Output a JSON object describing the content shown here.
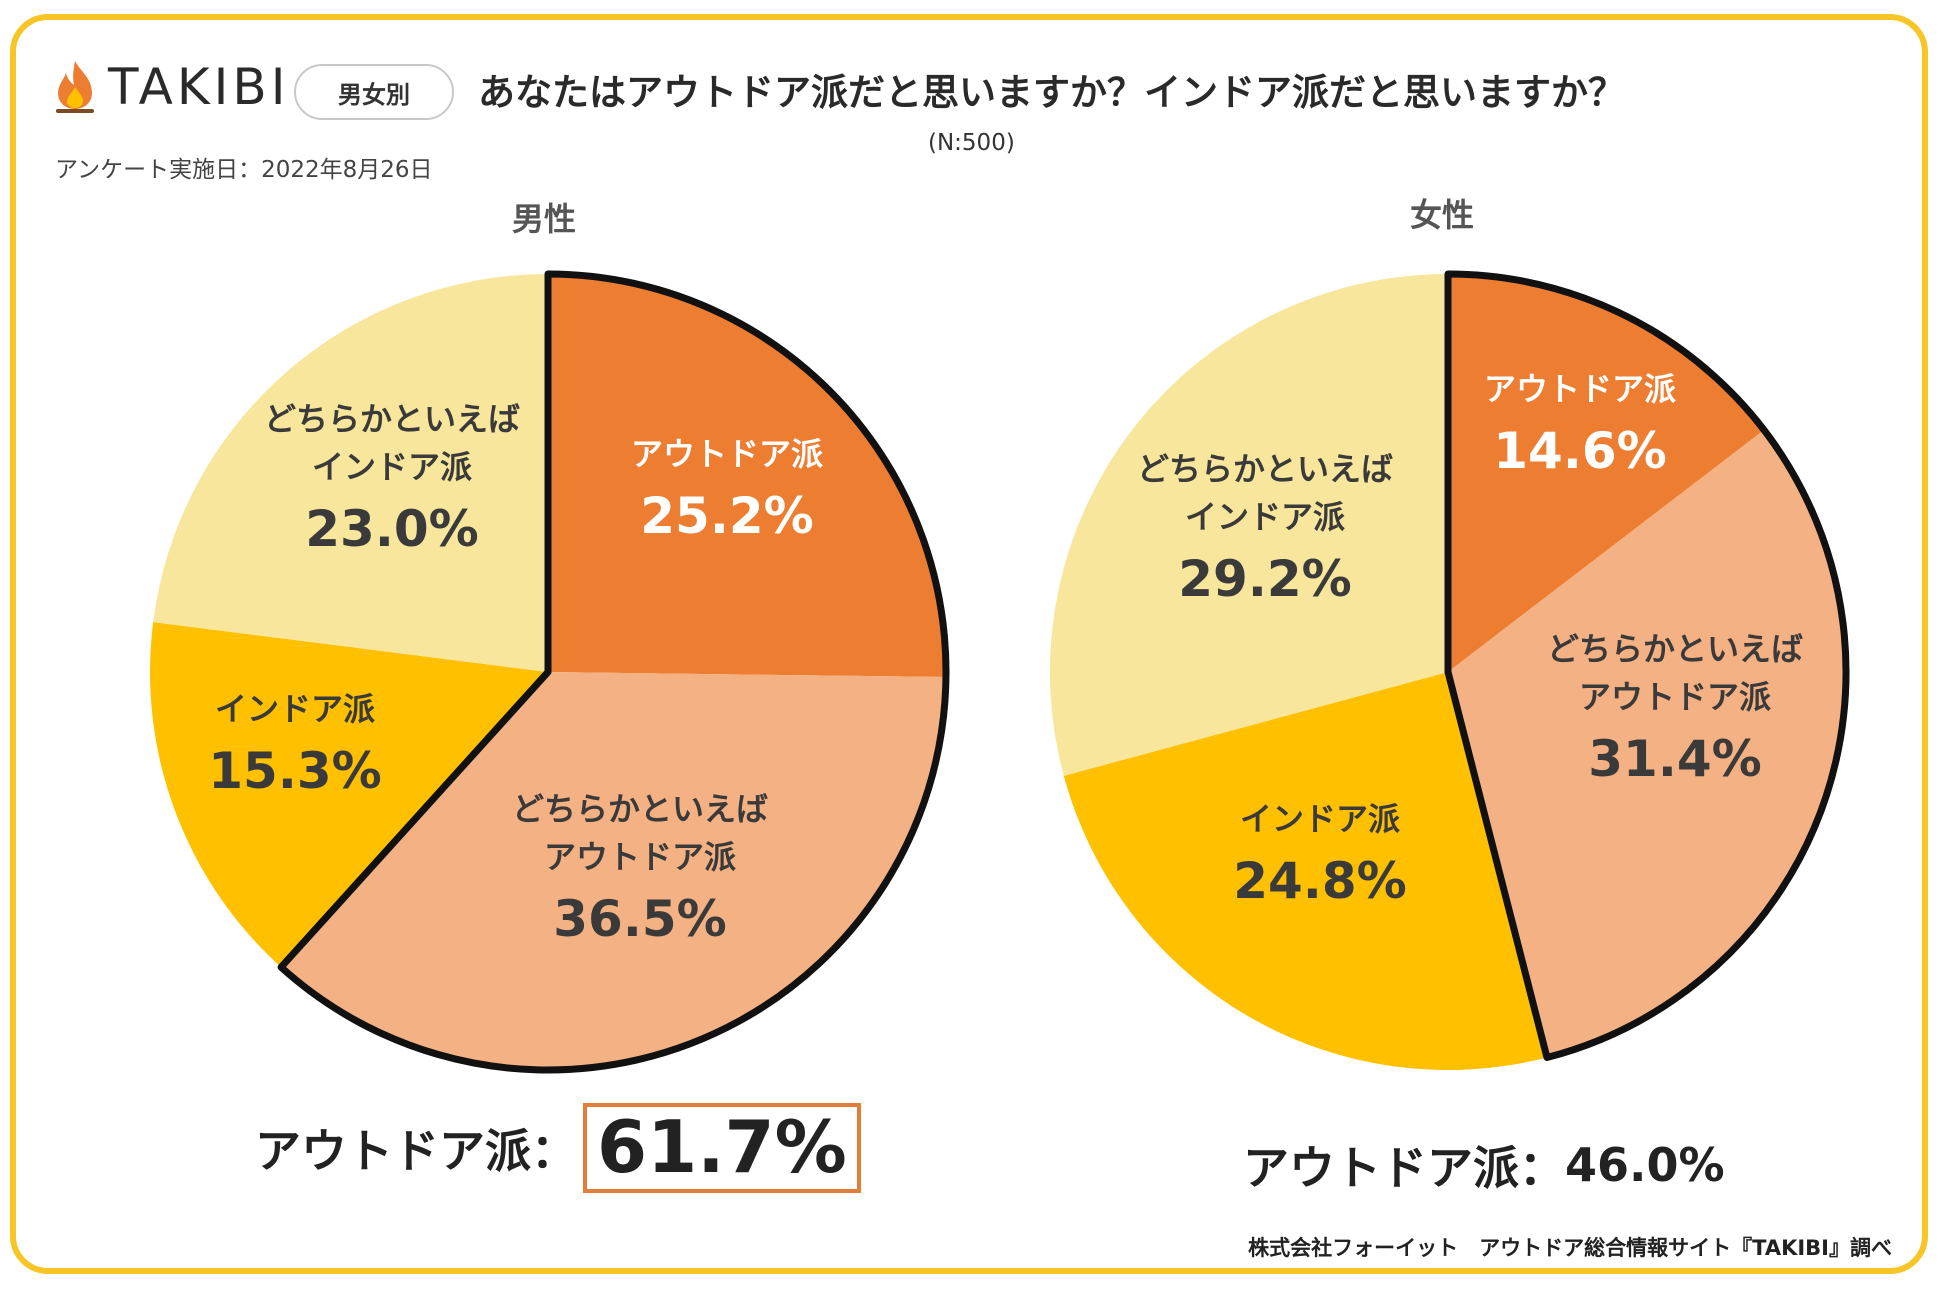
{
  "brand": {
    "name": "TAKIBI"
  },
  "badge": "男女別",
  "title": "あなたはアウトドア派だと思いますか？インドア派だと思いますか？",
  "sample": "(N:500)",
  "survey_date": "アンケート実施日：2022年8月26日",
  "credit": "株式会社フォーイット　アウトドア総合情報サイト『TAKIBI』調べ",
  "colors": {
    "frame": "#f7c525",
    "outdoor": "#ed7d31",
    "lean_outdoor": "#f4b183",
    "indoor": "#ffc000",
    "lean_indoor": "#f8e69c",
    "highlight": "#e07f3a"
  },
  "chart_data": [
    {
      "type": "pie",
      "title": "男性",
      "categories": [
        "アウトドア派",
        "どちらかといえばアウトドア派",
        "インドア派",
        "どちらかといえばインドア派"
      ],
      "labels": [
        "アウトドア派",
        "どちらかといえば\nアウトドア派",
        "インドア派",
        "どちらかといえば\nインドア派"
      ],
      "values": [
        25.2,
        36.5,
        15.3,
        23.0
      ],
      "value_labels": [
        "25.2%",
        "36.5%",
        "15.3%",
        "23.0%"
      ],
      "outlined_group": "アウトドア派＋どちらかといえばアウトドア派",
      "summary_label": "アウトドア派：",
      "summary_value": "61.7%"
    },
    {
      "type": "pie",
      "title": "女性",
      "categories": [
        "アウトドア派",
        "どちらかといえばアウトドア派",
        "インドア派",
        "どちらかといえばインドア派"
      ],
      "labels": [
        "アウトドア派",
        "どちらかといえば\nアウトドア派",
        "インドア派",
        "どちらかといえば\nインドア派"
      ],
      "values": [
        14.6,
        31.4,
        24.8,
        29.2
      ],
      "value_labels": [
        "14.6%",
        "31.4%",
        "24.8%",
        "29.2%"
      ],
      "outlined_group": "アウトドア派＋どちらかといえばアウトドア派",
      "summary_label": "アウトドア派：",
      "summary_value": "46.0%"
    }
  ]
}
